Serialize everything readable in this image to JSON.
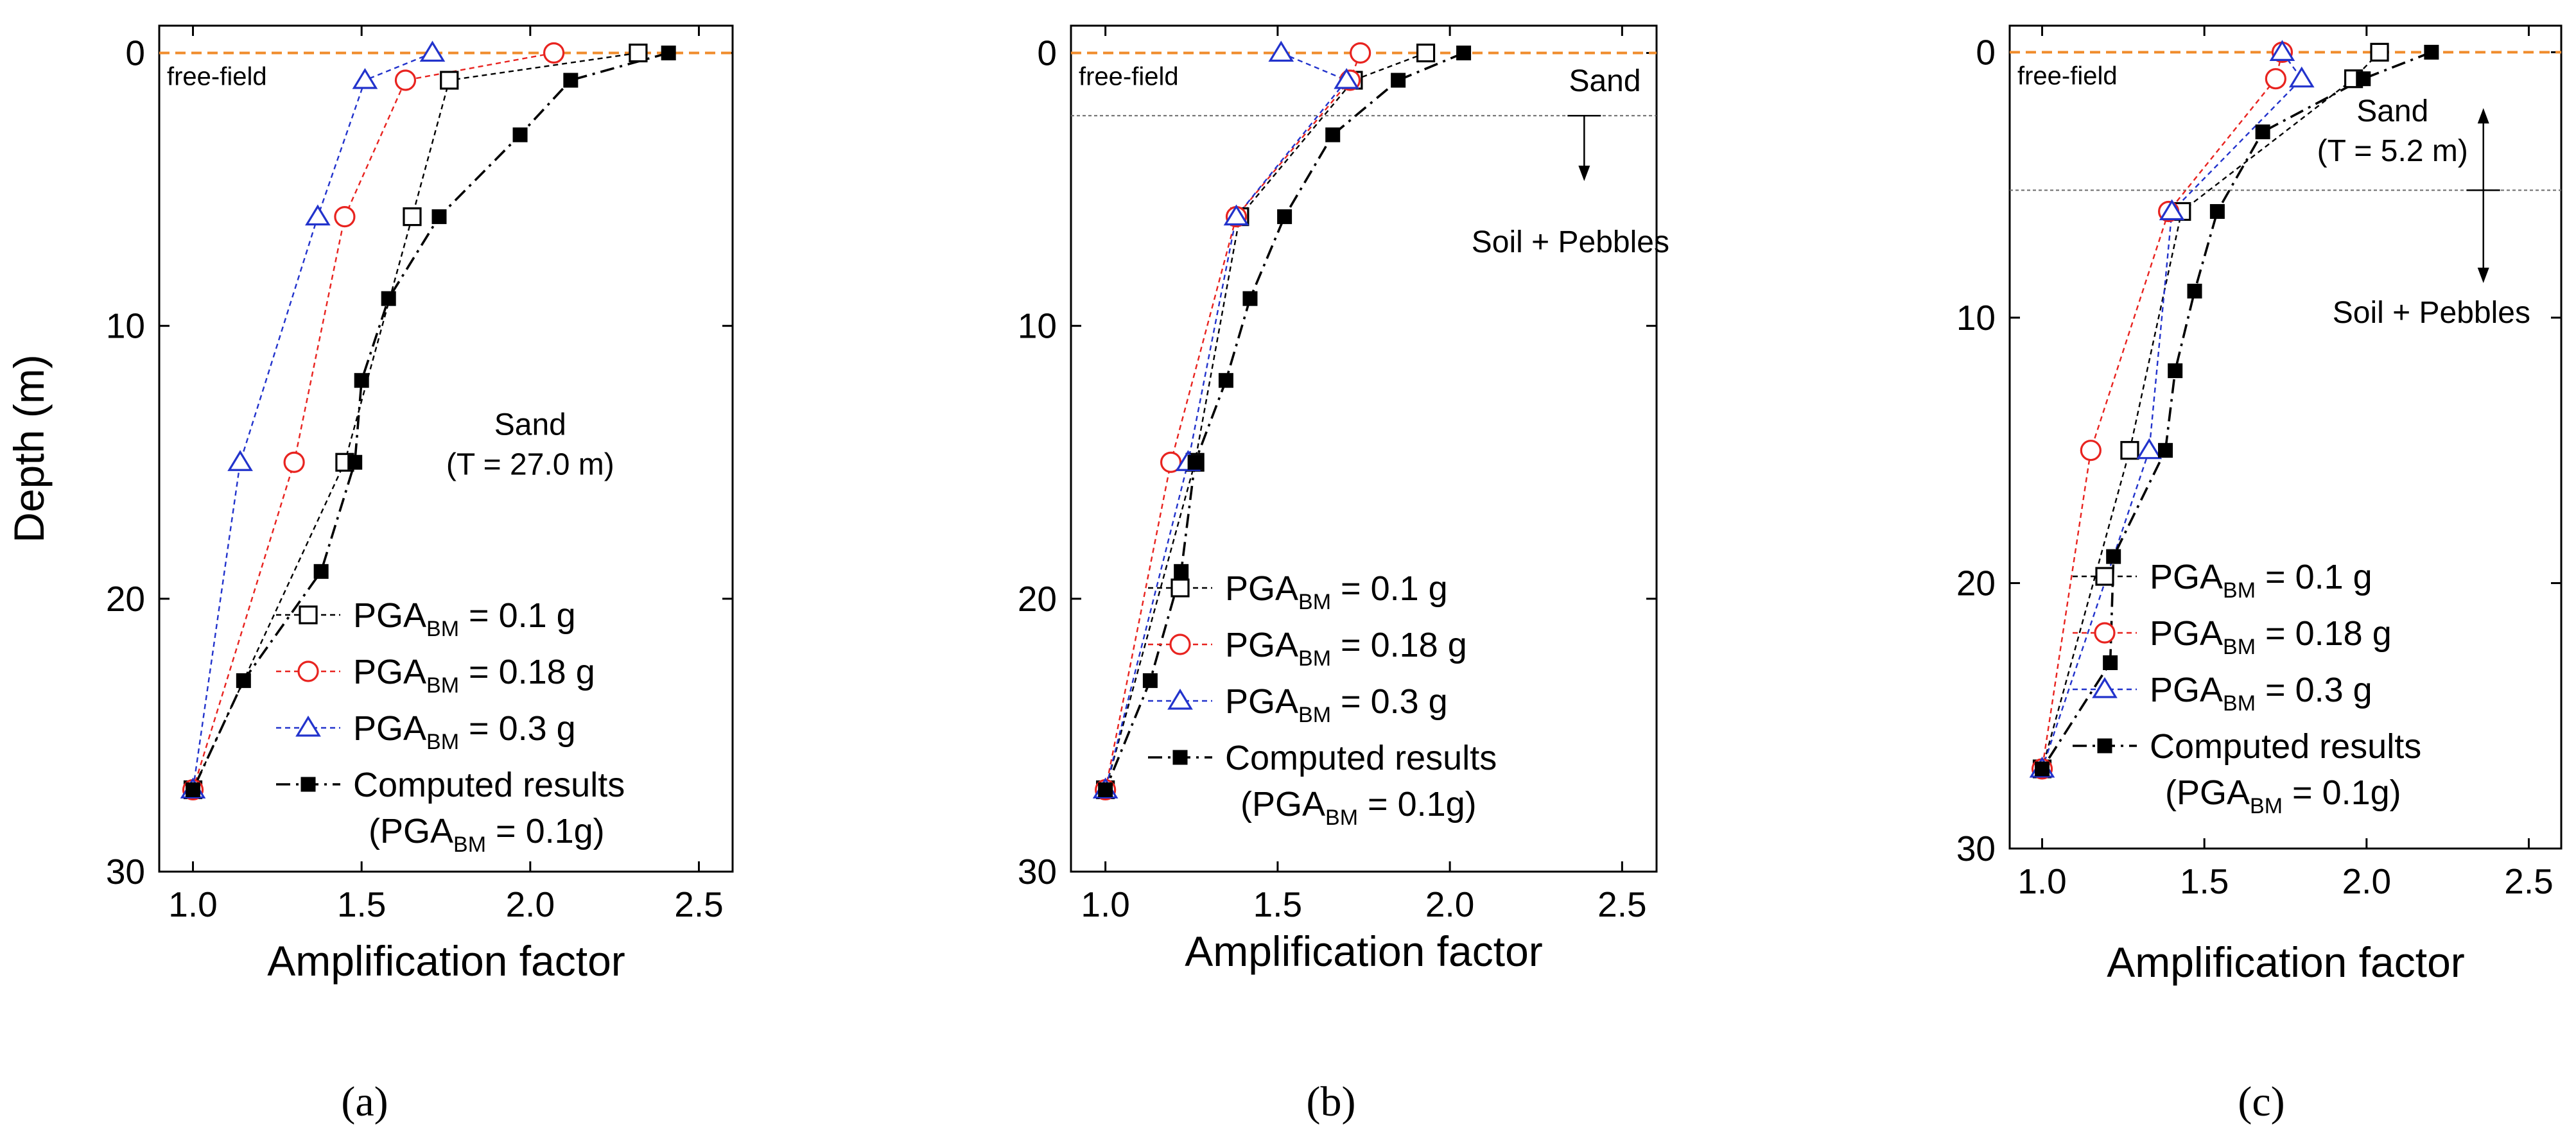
{
  "figure": {
    "captions": [
      "(a)",
      "(b)",
      "(c)"
    ],
    "colors": {
      "free_field": "#f08c2c",
      "pga_01": "#000000",
      "pga_018": "#e8231f",
      "pga_03": "#2233cc",
      "computed": "#000000",
      "divider": "#6a6a6a"
    }
  },
  "chart_data": [
    {
      "id": "a",
      "type": "line",
      "orientation": "depth-profile",
      "xlabel": "Amplification factor",
      "ylabel": "Depth (m)",
      "xlim": [
        0.9,
        2.6
      ],
      "ylim": [
        30,
        -1
      ],
      "x_ticks": [
        "1.0",
        "1.5",
        "2.0",
        "2.5"
      ],
      "y_ticks": [
        "0",
        "10",
        "20",
        "30"
      ],
      "x_tick_values": [
        1.0,
        1.5,
        2.0,
        2.5
      ],
      "y_tick_values": [
        0,
        10,
        20,
        30
      ],
      "free_field": {
        "depth": 0,
        "label": "free-field"
      },
      "annotations": [
        {
          "lines": [
            "Sand",
            "(T = 27.0 m)"
          ],
          "x": 2.0,
          "y": 14
        }
      ],
      "layer_boundary": null,
      "legend": {
        "placement": "bottom-right",
        "entries": [
          {
            "series": "PGA_BM = 0.1 g",
            "prefix": "PGA",
            "sub": "BM",
            "suffix": " = 0.1 g",
            "extra": null
          },
          {
            "series": "PGA_BM = 0.18 g",
            "prefix": "PGA",
            "sub": "BM",
            "suffix": " = 0.18 g",
            "extra": null
          },
          {
            "series": "PGA_BM = 0.3 g",
            "prefix": "PGA",
            "sub": "BM",
            "suffix": " = 0.3 g",
            "extra": null
          },
          {
            "series": "Computed results",
            "prefix": "Computed results",
            "sub": "",
            "suffix": "",
            "extra": {
              "prefix": "(PGA",
              "sub": "BM",
              "suffix": " = 0.1g)"
            }
          }
        ]
      },
      "series": [
        {
          "name": "PGA_BM = 0.1 g",
          "marker": "square-open",
          "dash": "short",
          "color_key": "pga_01",
          "x": [
            2.32,
            1.76,
            1.65,
            1.45,
            1.0
          ],
          "y": [
            0,
            1,
            6,
            15,
            27
          ]
        },
        {
          "name": "PGA_BM = 0.18 g",
          "marker": "circle-open",
          "dash": "short",
          "color_key": "pga_018",
          "x": [
            2.07,
            1.63,
            1.45,
            1.3,
            1.0
          ],
          "y": [
            0,
            1,
            6,
            15,
            27
          ]
        },
        {
          "name": "PGA_BM = 0.3 g",
          "marker": "triangle-open",
          "dash": "short",
          "color_key": "pga_03",
          "x": [
            1.71,
            1.51,
            1.37,
            1.14,
            1.0
          ],
          "y": [
            0,
            1,
            6,
            15,
            27
          ]
        },
        {
          "name": "Computed results",
          "marker": "square-filled",
          "dash": "dashdot",
          "color_key": "computed",
          "x": [
            2.41,
            2.12,
            1.97,
            1.73,
            1.58,
            1.5,
            1.48,
            1.38,
            1.15,
            1.0
          ],
          "y": [
            0,
            1,
            3,
            6,
            9,
            12,
            15,
            19,
            23,
            27
          ]
        }
      ]
    },
    {
      "id": "b",
      "type": "line",
      "orientation": "depth-profile",
      "xlabel": "Amplification factor",
      "ylabel": "",
      "xlim": [
        0.9,
        2.6
      ],
      "ylim": [
        30,
        -1
      ],
      "x_ticks": [
        "1.0",
        "1.5",
        "2.0",
        "2.5"
      ],
      "y_ticks": [
        "0",
        "10",
        "20",
        "30"
      ],
      "x_tick_values": [
        1.0,
        1.5,
        2.0,
        2.5
      ],
      "y_tick_values": [
        0,
        10,
        20,
        30
      ],
      "free_field": {
        "depth": 0,
        "label": "free-field"
      },
      "annotations": [
        {
          "lines": [
            "Sand"
          ],
          "x": 2.45,
          "y": 1.4
        },
        {
          "lines": [
            "Soil + Pebbles"
          ],
          "x": 2.35,
          "y": 7.3
        }
      ],
      "layer_boundary": {
        "depth": 2.3,
        "arrow_x": 2.39,
        "arrow_to": 4.6,
        "bidirectional": false
      },
      "legend": {
        "placement": "bottom-right",
        "entries": [
          {
            "series": "PGA_BM = 0.1 g",
            "prefix": "PGA",
            "sub": "BM",
            "suffix": " = 0.1 g",
            "extra": null
          },
          {
            "series": "PGA_BM = 0.18 g",
            "prefix": "PGA",
            "sub": "BM",
            "suffix": " = 0.18 g",
            "extra": null
          },
          {
            "series": "PGA_BM = 0.3 g",
            "prefix": "PGA",
            "sub": "BM",
            "suffix": " = 0.3 g",
            "extra": null
          },
          {
            "series": "Computed results",
            "prefix": "Computed results",
            "sub": "",
            "suffix": "",
            "extra": {
              "prefix": "(PGA",
              "sub": "BM",
              "suffix": " = 0.1g)"
            }
          }
        ]
      },
      "series": [
        {
          "name": "PGA_BM = 0.1 g",
          "marker": "square-open",
          "dash": "short",
          "color_key": "pga_01",
          "x": [
            1.93,
            1.72,
            1.39,
            1.26,
            1.0
          ],
          "y": [
            0,
            1,
            6,
            15,
            27
          ]
        },
        {
          "name": "PGA_BM = 0.18 g",
          "marker": "circle-open",
          "dash": "short",
          "color_key": "pga_018",
          "x": [
            1.74,
            1.71,
            1.38,
            1.19,
            1.0
          ],
          "y": [
            0,
            1,
            6,
            15,
            27
          ]
        },
        {
          "name": "PGA_BM = 0.3 g",
          "marker": "triangle-open",
          "dash": "short",
          "color_key": "pga_03",
          "x": [
            1.51,
            1.7,
            1.38,
            1.24,
            1.0
          ],
          "y": [
            0,
            1,
            6,
            15,
            27
          ]
        },
        {
          "name": "Computed results",
          "marker": "square-filled",
          "dash": "dashdot",
          "color_key": "computed",
          "x": [
            2.04,
            1.85,
            1.66,
            1.52,
            1.42,
            1.35,
            1.26,
            1.22,
            1.13,
            1.0
          ],
          "y": [
            0,
            1,
            3,
            6,
            9,
            12,
            15,
            19,
            23,
            27
          ]
        }
      ]
    },
    {
      "id": "c",
      "type": "line",
      "orientation": "depth-profile",
      "xlabel": "Amplification factor",
      "ylabel": "",
      "xlim": [
        0.9,
        2.6
      ],
      "ylim": [
        30,
        -1
      ],
      "x_ticks": [
        "1.0",
        "1.5",
        "2.0",
        "2.5"
      ],
      "y_ticks": [
        "0",
        "10",
        "20",
        "30"
      ],
      "x_tick_values": [
        1.0,
        1.5,
        2.0,
        2.5
      ],
      "y_tick_values": [
        0,
        10,
        20,
        30
      ],
      "free_field": {
        "depth": 0,
        "label": "free-field"
      },
      "annotations": [
        {
          "lines": [
            "Sand",
            "(T = 5.2 m)"
          ],
          "x": 2.08,
          "y": 2.6
        },
        {
          "lines": [
            "Soil + Pebbles"
          ],
          "x": 2.2,
          "y": 10.2
        }
      ],
      "layer_boundary": {
        "depth": 5.2,
        "arrow_x": 2.36,
        "arrow_up_to": 2.2,
        "arrow_to": 8.6,
        "bidirectional": true
      },
      "legend": {
        "placement": "bottom-right",
        "entries": [
          {
            "series": "PGA_BM = 0.1 g",
            "prefix": "PGA",
            "sub": "BM",
            "suffix": " = 0.1 g",
            "extra": null
          },
          {
            "series": "PGA_BM = 0.18 g",
            "prefix": "PGA",
            "sub": "BM",
            "suffix": " = 0.18 g",
            "extra": null
          },
          {
            "series": "PGA_BM = 0.3 g",
            "prefix": "PGA",
            "sub": "BM",
            "suffix": " = 0.3 g",
            "extra": null
          },
          {
            "series": "Computed results",
            "prefix": "Computed results",
            "sub": "",
            "suffix": "",
            "extra": {
              "prefix": "(PGA",
              "sub": "BM",
              "suffix": " = 0.1g)"
            }
          }
        ]
      },
      "series": [
        {
          "name": "PGA_BM = 0.1 g",
          "marker": "square-open",
          "dash": "short",
          "color_key": "pga_01",
          "x": [
            2.04,
            1.96,
            1.43,
            1.27,
            1.0
          ],
          "y": [
            0,
            1,
            6,
            15,
            27
          ]
        },
        {
          "name": "PGA_BM = 0.18 g",
          "marker": "circle-open",
          "dash": "short",
          "color_key": "pga_018",
          "x": [
            1.74,
            1.72,
            1.39,
            1.15,
            1.0
          ],
          "y": [
            0,
            1,
            6,
            15,
            27
          ]
        },
        {
          "name": "PGA_BM = 0.3 g",
          "marker": "triangle-open",
          "dash": "short",
          "color_key": "pga_03",
          "x": [
            1.74,
            1.8,
            1.4,
            1.33,
            1.0
          ],
          "y": [
            0,
            1,
            6,
            15,
            27
          ]
        },
        {
          "name": "Computed results",
          "marker": "square-filled",
          "dash": "dashdot",
          "color_key": "computed",
          "x": [
            2.2,
            1.99,
            1.68,
            1.54,
            1.47,
            1.41,
            1.38,
            1.22,
            1.21,
            1.0
          ],
          "y": [
            0,
            1,
            3,
            6,
            9,
            12,
            15,
            19,
            23,
            27
          ]
        }
      ]
    }
  ]
}
